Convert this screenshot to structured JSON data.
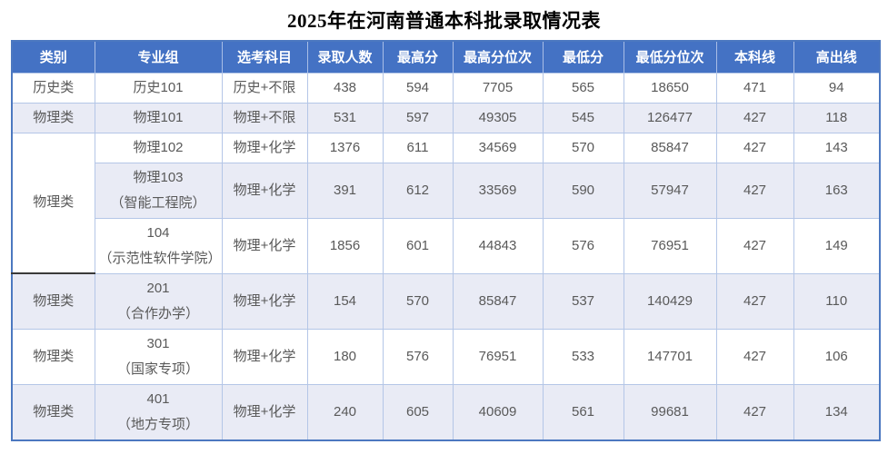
{
  "title": "2025年在河南普通本科批录取情况表",
  "colors": {
    "header_bg": "#4472C4",
    "header_text": "#FFFFFF",
    "alt_row_bg": "#E9EBF5",
    "grid_border": "#B4C6E7",
    "outer_border": "#4C78C0",
    "merged_cell_divider": "#3A3A3A",
    "body_text": "#595959",
    "title_text": "#000000"
  },
  "table": {
    "headers": [
      "类别",
      "专业组",
      "选考科目",
      "录取人数",
      "最高分",
      "最高分位次",
      "最低分",
      "最低分位次",
      "本科线",
      "高出线"
    ],
    "rows": [
      {
        "category": {
          "label": "历史类",
          "span": 1,
          "divider": false
        },
        "group": "历史101",
        "subjects": "历史+不限",
        "values": [
          "438",
          "594",
          "7705",
          "565",
          "18650",
          "471",
          "94"
        ]
      },
      {
        "category": {
          "label": "物理类",
          "span": 1,
          "divider": false
        },
        "group": "物理101",
        "subjects": "物理+不限",
        "values": [
          "531",
          "597",
          "49305",
          "545",
          "126477",
          "427",
          "118"
        ]
      },
      {
        "category": {
          "label": "物理类",
          "span": 3,
          "divider": true
        },
        "group": "物理102",
        "subjects": "物理+化学",
        "values": [
          "1376",
          "611",
          "34569",
          "570",
          "85847",
          "427",
          "143"
        ]
      },
      {
        "category": null,
        "group": "物理103\n（智能工程院）",
        "subjects": "物理+化学",
        "values": [
          "391",
          "612",
          "33569",
          "590",
          "57947",
          "427",
          "163"
        ]
      },
      {
        "category": null,
        "group": "104\n（示范性软件学院）",
        "subjects": "物理+化学",
        "values": [
          "1856",
          "601",
          "44843",
          "576",
          "76951",
          "427",
          "149"
        ]
      },
      {
        "category": {
          "label": "物理类",
          "span": 1,
          "divider": false
        },
        "group": "201\n（合作办学）",
        "subjects": "物理+化学",
        "values": [
          "154",
          "570",
          "85847",
          "537",
          "140429",
          "427",
          "110"
        ]
      },
      {
        "category": {
          "label": "物理类",
          "span": 1,
          "divider": false
        },
        "group": "301\n（国家专项）",
        "subjects": "物理+化学",
        "values": [
          "180",
          "576",
          "76951",
          "533",
          "147701",
          "427",
          "106"
        ]
      },
      {
        "category": {
          "label": "物理类",
          "span": 1,
          "divider": false
        },
        "group": "401\n（地方专项）",
        "subjects": "物理+化学",
        "values": [
          "240",
          "605",
          "40609",
          "561",
          "99681",
          "427",
          "134"
        ]
      }
    ]
  }
}
